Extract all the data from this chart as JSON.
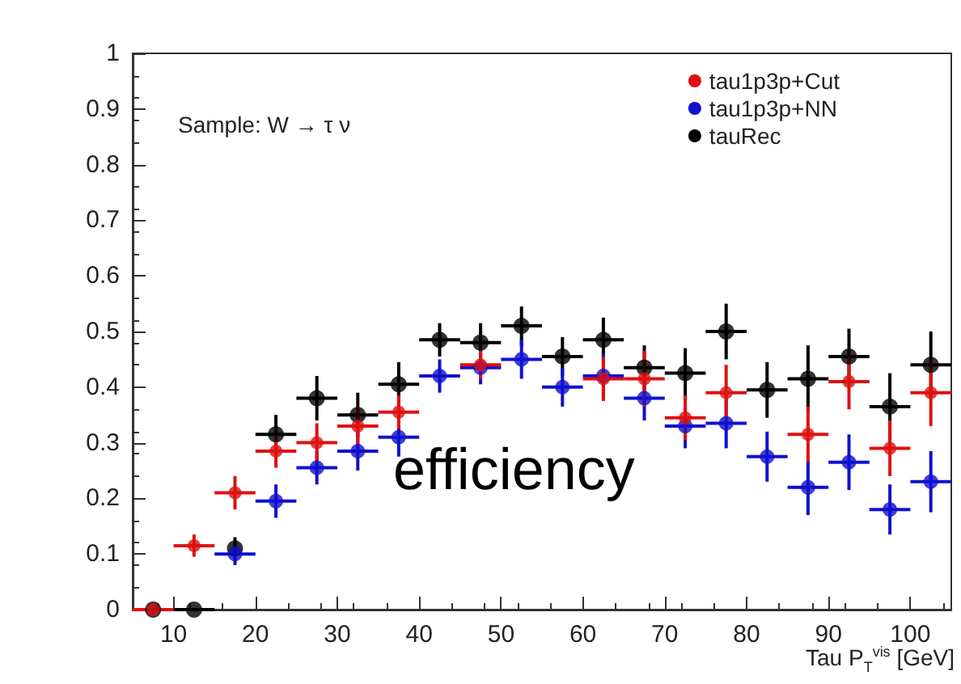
{
  "chart_data": {
    "type": "scatter",
    "xlabel": "Tau P$_{T}$$^{vis}$ [GeV]",
    "annotations": [
      "Sample: W → τ ν",
      "efficiency"
    ],
    "x": [
      7.5,
      12.5,
      17.5,
      22.5,
      27.5,
      32.5,
      37.5,
      42.5,
      47.5,
      52.5,
      57.5,
      62.5,
      67.5,
      72.5,
      77.5,
      82.5,
      87.5,
      92.5,
      97.5,
      102.5
    ],
    "series": [
      {
        "name": "tau1p3p+Cut",
        "color": "#e01010",
        "values": [
          0,
          0.115,
          0.21,
          0.285,
          0.3,
          0.33,
          0.355,
          null,
          0.44,
          null,
          null,
          0.415,
          0.415,
          0.345,
          0.39,
          null,
          0.315,
          0.41,
          0.29,
          0.39
        ],
        "errors": [
          null,
          0.02,
          0.03,
          0.03,
          0.035,
          0.035,
          0.03,
          null,
          0.025,
          null,
          null,
          0.04,
          0.05,
          0.04,
          0.05,
          null,
          0.05,
          0.05,
          0.05,
          0.06
        ],
        "xerrors": [
          2.5,
          2.5,
          2.5,
          2.5,
          2.5,
          2.5,
          2.5,
          null,
          2.5,
          null,
          null,
          2.5,
          2.5,
          2.5,
          2.5,
          null,
          2.5,
          2.5,
          2.5,
          2.5
        ]
      },
      {
        "name": "tau1p3p+NN",
        "color": "#1010d0",
        "values": [
          null,
          null,
          0.1,
          0.195,
          0.255,
          0.285,
          0.31,
          0.42,
          0.435,
          0.45,
          0.4,
          0.42,
          0.38,
          0.33,
          0.335,
          0.275,
          0.22,
          0.265,
          0.18,
          0.23
        ],
        "errors": [
          null,
          null,
          0.02,
          0.03,
          0.03,
          0.035,
          0.035,
          0.03,
          0.03,
          0.035,
          0.035,
          0.04,
          0.04,
          0.04,
          0.045,
          0.045,
          0.05,
          0.05,
          0.045,
          0.055
        ],
        "xerrors": [
          null,
          null,
          2.5,
          2.5,
          2.5,
          2.5,
          2.5,
          2.5,
          2.5,
          2.5,
          2.5,
          2.5,
          2.5,
          2.5,
          2.5,
          2.5,
          2.5,
          2.5,
          2.5,
          2.5
        ]
      },
      {
        "name": "tauRec",
        "color": "#000000",
        "values": [
          0,
          0,
          0.11,
          0.315,
          0.38,
          0.35,
          0.405,
          0.485,
          0.48,
          0.51,
          0.455,
          0.485,
          0.435,
          0.425,
          0.5,
          0.395,
          0.415,
          0.455,
          0.365,
          0.44
        ],
        "errors": [
          null,
          null,
          0.02,
          0.035,
          0.04,
          0.04,
          0.04,
          0.03,
          0.035,
          0.035,
          0.035,
          0.04,
          0.04,
          0.045,
          0.05,
          0.05,
          0.06,
          0.05,
          0.06,
          0.06
        ],
        "xerrors": [
          null,
          2.5,
          null,
          2.5,
          2.5,
          2.5,
          2.5,
          2.5,
          2.5,
          2.5,
          2.5,
          2.5,
          2.5,
          2.5,
          2.5,
          2.5,
          2.5,
          2.5,
          2.5,
          2.5
        ]
      }
    ],
    "xlim": [
      5,
      105
    ],
    "xticks": [
      10,
      20,
      30,
      40,
      50,
      60,
      70,
      80,
      90,
      100
    ],
    "ylim": [
      0,
      1
    ],
    "yticks": [
      0,
      0.1,
      0.2,
      0.3,
      0.4,
      0.5,
      0.6,
      0.7,
      0.8,
      0.9,
      1
    ],
    "legend": "top right",
    "marker": "circle",
    "grid": false
  }
}
